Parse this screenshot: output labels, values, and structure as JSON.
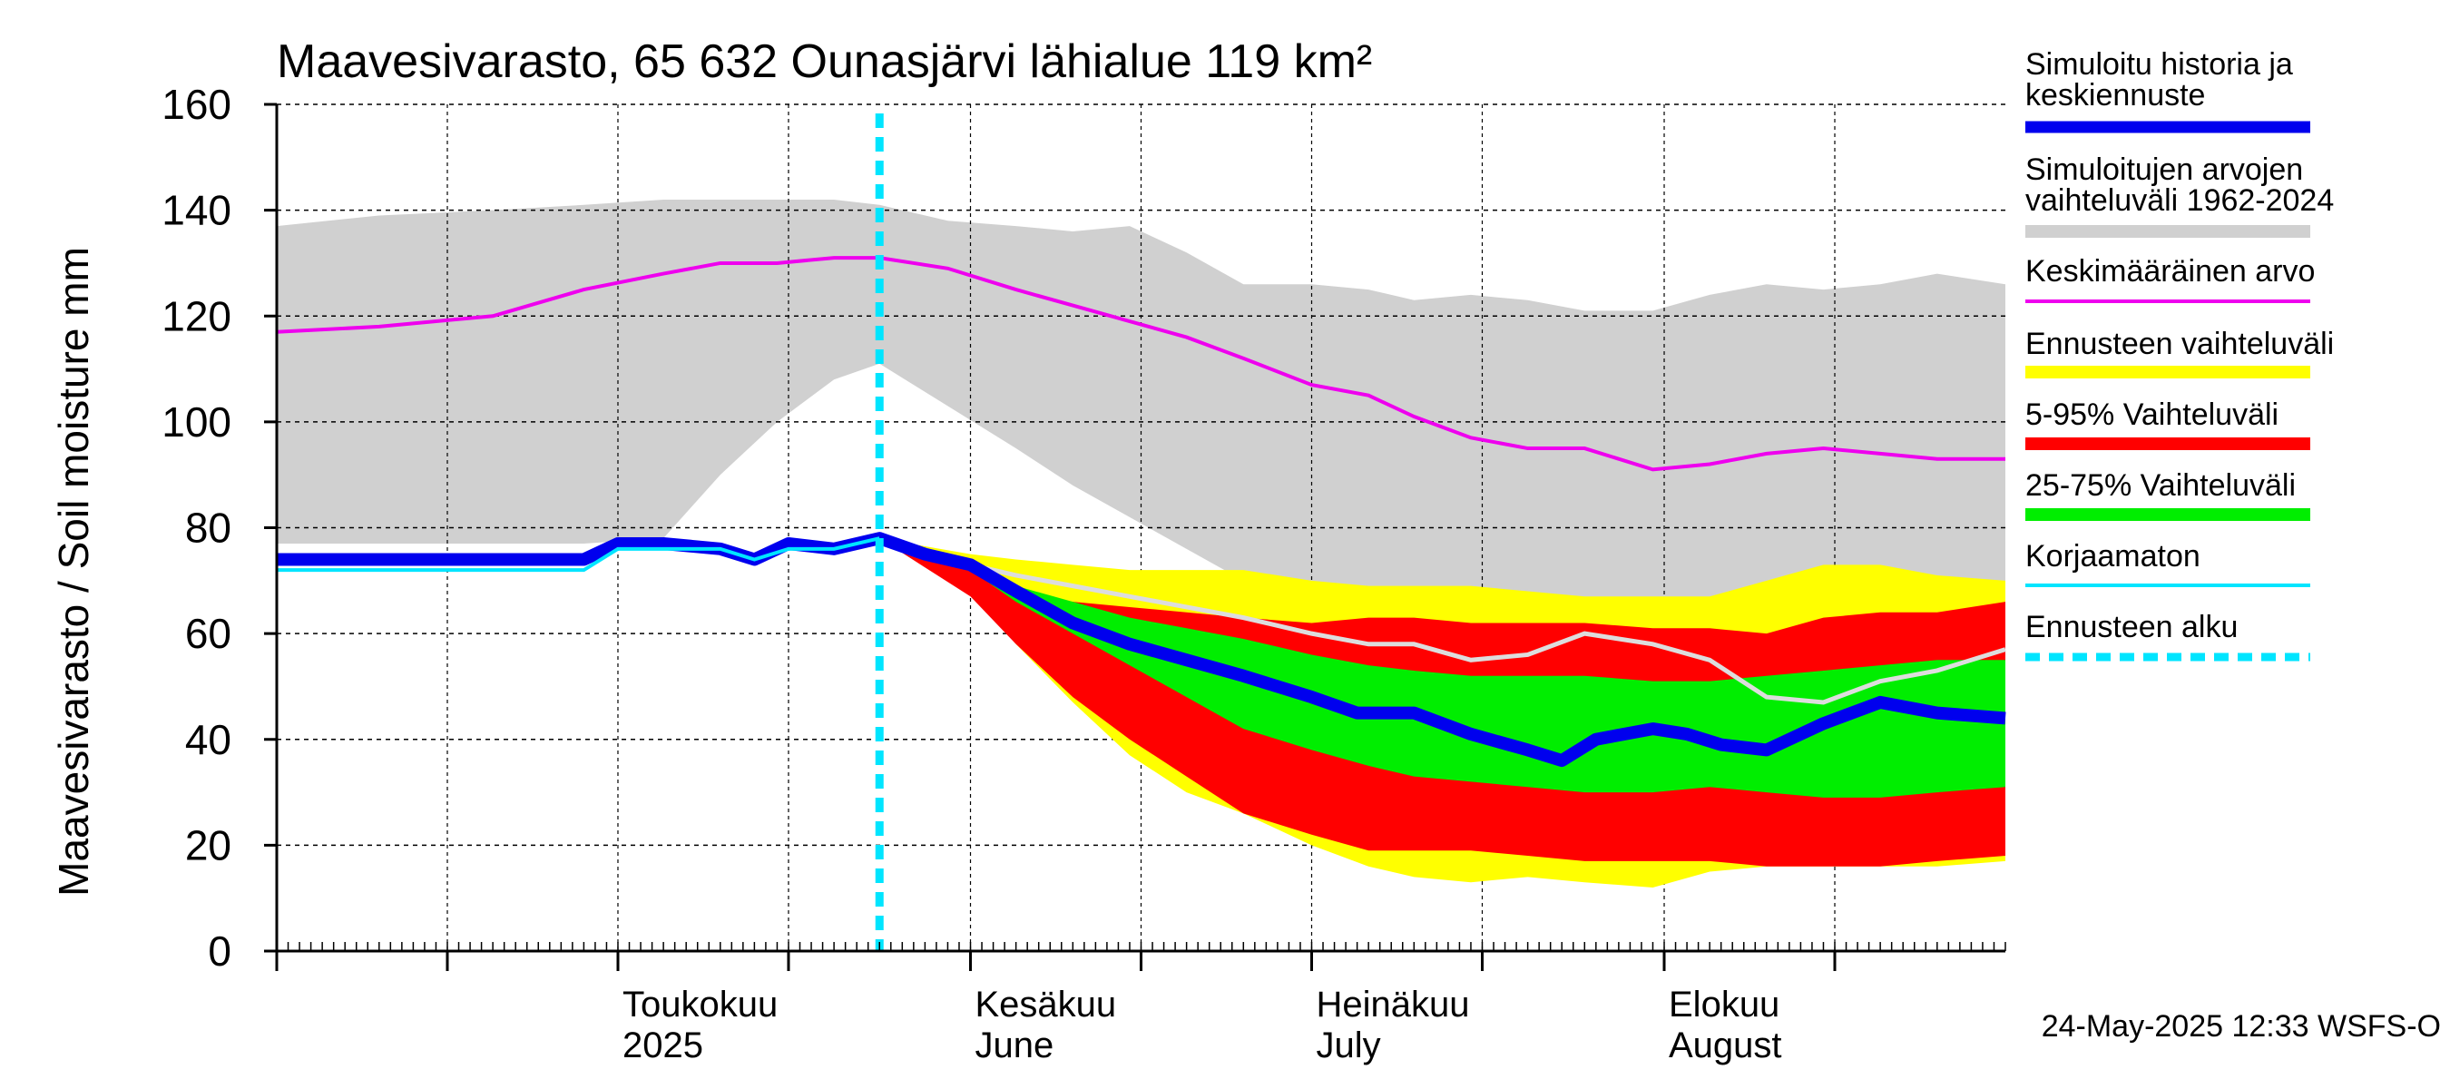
{
  "chart_data": {
    "type": "area",
    "title": "Maavesivarasto, 65 632 Ounasjärvi lähialue 119 km²",
    "ylabel": "Maavesivarasto / Soil moisture   mm",
    "xlabel": "",
    "ylim": [
      0,
      160
    ],
    "xlim": [
      "2025-04-01",
      "2025-08-31"
    ],
    "grid": true,
    "y_ticks": [
      "0",
      "20",
      "40",
      "60",
      "80",
      "100",
      "120",
      "140",
      "160"
    ],
    "x_month_labels": [
      {
        "date": "2025-05-01",
        "line1": "Toukokuu",
        "line2": "2025"
      },
      {
        "date": "2025-06-01",
        "line1": "Kesäkuu",
        "line2": "June"
      },
      {
        "date": "2025-07-01",
        "line1": "Heinäkuu",
        "line2": "July"
      },
      {
        "date": "2025-08-01",
        "line1": "Elokuu",
        "line2": "August"
      }
    ],
    "forecast_start": "2025-05-24",
    "timestamp": "24-May-2025 12:33 WSFS-O",
    "legend_position": "right",
    "legend": [
      {
        "key": "hist",
        "label": "Simuloitu historia ja keskiennuste",
        "line1": "Simuloitu historia ja",
        "line2": "keskiennuste",
        "color": "#0000ee",
        "style": "thick"
      },
      {
        "key": "range",
        "label": "Simuloitujen arvojen vaihteluväli 1962-2024",
        "line1": "Simuloitujen arvojen",
        "line2": "vaihteluväli 1962-2024",
        "color": "#d0d0d0",
        "style": "band"
      },
      {
        "key": "mean",
        "label": "Keskimääräinen arvo",
        "line1": "Keskimääräinen arvo",
        "line2": "",
        "color": "#ee00ee",
        "style": "thin"
      },
      {
        "key": "fc",
        "label": "Ennusteen vaihteluväli",
        "line1": "Ennusteen vaihteluväli",
        "line2": "",
        "color": "#ffff00",
        "style": "band"
      },
      {
        "key": "p595",
        "label": "5-95% Vaihteluväli",
        "line1": "5-95% Vaihteluväli",
        "line2": "",
        "color": "#ff0000",
        "style": "band"
      },
      {
        "key": "p2575",
        "label": "25-75% Vaihteluväli",
        "line1": "25-75% Vaihteluväli",
        "line2": "",
        "color": "#00ee00",
        "style": "band"
      },
      {
        "key": "raw",
        "label": "Korjaamaton",
        "line1": "Korjaamaton",
        "line2": "",
        "color": "#00e5ff",
        "style": "thin"
      },
      {
        "key": "start",
        "label": "Ennusteen alku",
        "line1": "Ennusteen alku",
        "line2": "",
        "color": "#00e5ff",
        "style": "dashed"
      }
    ],
    "series": {
      "hist_range": {
        "x": [
          "2025-04-01",
          "2025-04-10",
          "2025-04-20",
          "2025-04-28",
          "2025-05-05",
          "2025-05-10",
          "2025-05-15",
          "2025-05-20",
          "2025-05-24",
          "2025-05-30",
          "2025-06-05",
          "2025-06-10",
          "2025-06-15",
          "2025-06-20",
          "2025-06-25",
          "2025-07-01",
          "2025-07-06",
          "2025-07-10",
          "2025-07-15",
          "2025-07-20",
          "2025-07-25",
          "2025-07-31",
          "2025-08-05",
          "2025-08-10",
          "2025-08-15",
          "2025-08-20",
          "2025-08-25",
          "2025-08-31"
        ],
        "low": [
          77,
          77,
          77,
          77,
          78,
          90,
          100,
          108,
          111,
          103,
          95,
          88,
          82,
          76,
          70,
          66,
          64,
          65,
          64,
          63,
          63,
          63,
          64,
          66,
          67,
          68,
          68,
          69
        ],
        "high": [
          137,
          139,
          140,
          141,
          142,
          142,
          142,
          142,
          141,
          138,
          137,
          136,
          137,
          132,
          126,
          126,
          125,
          123,
          124,
          123,
          121,
          121,
          124,
          126,
          125,
          126,
          128,
          126
        ]
      },
      "mean": {
        "x": [
          "2025-04-01",
          "2025-04-10",
          "2025-04-20",
          "2025-04-28",
          "2025-05-05",
          "2025-05-10",
          "2025-05-15",
          "2025-05-20",
          "2025-05-24",
          "2025-05-30",
          "2025-06-05",
          "2025-06-10",
          "2025-06-15",
          "2025-06-20",
          "2025-06-25",
          "2025-07-01",
          "2025-07-06",
          "2025-07-10",
          "2025-07-15",
          "2025-07-20",
          "2025-07-25",
          "2025-07-31",
          "2025-08-05",
          "2025-08-10",
          "2025-08-15",
          "2025-08-20",
          "2025-08-25",
          "2025-08-31"
        ],
        "values": [
          117,
          118,
          120,
          125,
          128,
          130,
          130,
          131,
          131,
          129,
          125,
          122,
          119,
          116,
          112,
          107,
          105,
          101,
          97,
          95,
          95,
          91,
          92,
          94,
          95,
          94,
          93,
          93
        ]
      },
      "forecast_range": {
        "x": [
          "2025-05-24",
          "2025-06-01",
          "2025-06-05",
          "2025-06-10",
          "2025-06-15",
          "2025-06-20",
          "2025-06-25",
          "2025-07-01",
          "2025-07-06",
          "2025-07-10",
          "2025-07-15",
          "2025-07-20",
          "2025-07-25",
          "2025-07-31",
          "2025-08-05",
          "2025-08-10",
          "2025-08-15",
          "2025-08-20",
          "2025-08-25",
          "2025-08-31"
        ],
        "low": [
          78,
          68,
          58,
          47,
          37,
          30,
          26,
          20,
          16,
          14,
          13,
          14,
          13,
          12,
          15,
          16,
          16,
          16,
          16,
          17
        ],
        "high": [
          78,
          75,
          74,
          73,
          72,
          72,
          72,
          70,
          69,
          69,
          69,
          68,
          67,
          67,
          67,
          70,
          73,
          73,
          71,
          70
        ]
      },
      "p5_95": {
        "x": [
          "2025-05-24",
          "2025-06-01",
          "2025-06-05",
          "2025-06-10",
          "2025-06-15",
          "2025-06-20",
          "2025-06-25",
          "2025-07-01",
          "2025-07-06",
          "2025-07-10",
          "2025-07-15",
          "2025-07-20",
          "2025-07-25",
          "2025-07-31",
          "2025-08-05",
          "2025-08-10",
          "2025-08-15",
          "2025-08-20",
          "2025-08-25",
          "2025-08-31"
        ],
        "low": [
          78,
          67,
          58,
          48,
          40,
          33,
          26,
          22,
          19,
          19,
          19,
          18,
          17,
          17,
          17,
          16,
          16,
          16,
          17,
          18
        ],
        "high": [
          78,
          72,
          68,
          66,
          65,
          64,
          63,
          62,
          63,
          63,
          62,
          62,
          62,
          61,
          61,
          60,
          63,
          64,
          64,
          66
        ]
      },
      "p25_75": {
        "x": [
          "2025-05-24",
          "2025-06-01",
          "2025-06-05",
          "2025-06-10",
          "2025-06-15",
          "2025-06-20",
          "2025-06-25",
          "2025-07-01",
          "2025-07-06",
          "2025-07-10",
          "2025-07-15",
          "2025-07-20",
          "2025-07-25",
          "2025-07-31",
          "2025-08-05",
          "2025-08-10",
          "2025-08-15",
          "2025-08-20",
          "2025-08-25",
          "2025-08-31"
        ],
        "low": [
          78,
          72,
          66,
          60,
          54,
          48,
          42,
          38,
          35,
          33,
          32,
          31,
          30,
          30,
          31,
          30,
          29,
          29,
          30,
          31
        ],
        "high": [
          78,
          73,
          69,
          66,
          63,
          61,
          59,
          56,
          54,
          53,
          52,
          52,
          52,
          51,
          51,
          52,
          53,
          54,
          55,
          55
        ]
      },
      "hist_mean": {
        "x": [
          "2025-04-01",
          "2025-04-05",
          "2025-04-10",
          "2025-04-15",
          "2025-04-20",
          "2025-04-25",
          "2025-04-28",
          "2025-05-01",
          "2025-05-05",
          "2025-05-10",
          "2025-05-13",
          "2025-05-16",
          "2025-05-20",
          "2025-05-24",
          "2025-05-28",
          "2025-06-01",
          "2025-06-05",
          "2025-06-10",
          "2025-06-15",
          "2025-06-20",
          "2025-06-25",
          "2025-07-01",
          "2025-07-05",
          "2025-07-10",
          "2025-07-15",
          "2025-07-20",
          "2025-07-23",
          "2025-07-26",
          "2025-07-31",
          "2025-08-03",
          "2025-08-06",
          "2025-08-10",
          "2025-08-15",
          "2025-08-20",
          "2025-08-25",
          "2025-08-31"
        ],
        "values": [
          74,
          74,
          74,
          74,
          74,
          74,
          74,
          77,
          77,
          76,
          74,
          77,
          76,
          78,
          75,
          73,
          68,
          62,
          58,
          55,
          52,
          48,
          45,
          45,
          41,
          38,
          36,
          40,
          42,
          41,
          39,
          38,
          43,
          47,
          45,
          44
        ]
      },
      "raw": {
        "x": [
          "2025-04-01",
          "2025-04-10",
          "2025-04-20",
          "2025-04-28",
          "2025-05-01",
          "2025-05-05",
          "2025-05-10",
          "2025-05-13",
          "2025-05-16",
          "2025-05-20",
          "2025-05-24"
        ],
        "values": [
          72,
          72,
          72,
          72,
          76,
          76,
          76,
          74,
          76,
          76,
          78
        ]
      },
      "grey_member": {
        "x": [
          "2025-05-24",
          "2025-06-01",
          "2025-06-05",
          "2025-06-10",
          "2025-06-15",
          "2025-06-20",
          "2025-06-25",
          "2025-07-01",
          "2025-07-06",
          "2025-07-10",
          "2025-07-15",
          "2025-07-20",
          "2025-07-25",
          "2025-07-31",
          "2025-08-05",
          "2025-08-10",
          "2025-08-15",
          "2025-08-20",
          "2025-08-25",
          "2025-08-31"
        ],
        "values": [
          78,
          73,
          71,
          69,
          67,
          65,
          63,
          60,
          58,
          58,
          55,
          56,
          60,
          58,
          55,
          48,
          47,
          51,
          53,
          57
        ]
      }
    }
  }
}
